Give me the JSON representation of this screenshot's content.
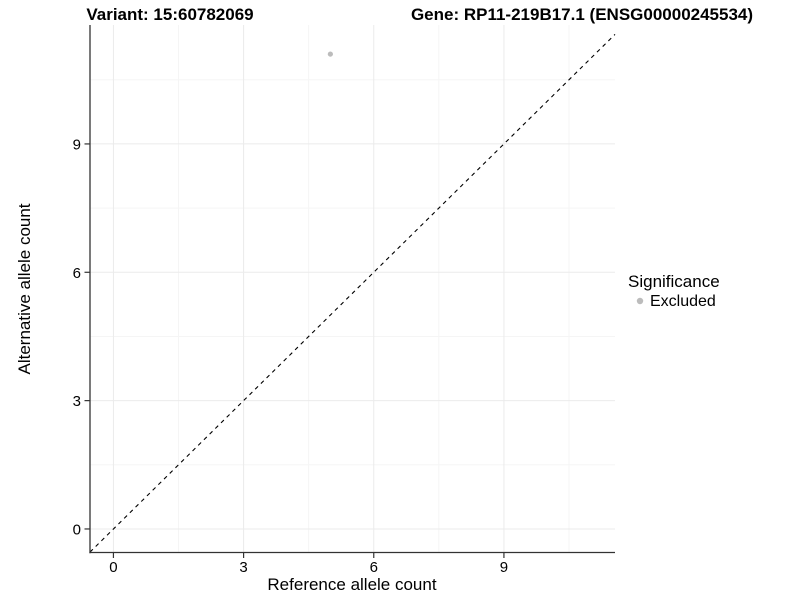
{
  "header": {
    "left_title": "Variant: 15:60782069",
    "right_title": "Gene: RP11-219B17.1 (ENSG00000245534)"
  },
  "chart_data": {
    "type": "scatter",
    "xlabel": "Reference allele count",
    "ylabel": "Alternative allele count",
    "x_ticks": [
      0,
      3,
      6,
      9
    ],
    "y_ticks": [
      0,
      3,
      6,
      9
    ],
    "x_minor_ticks": [
      1.5,
      4.5,
      7.5,
      10.5
    ],
    "y_minor_ticks": [
      1.5,
      4.5,
      7.5,
      10.5
    ],
    "xlim": [
      -0.54,
      11.56
    ],
    "ylim": [
      -0.55,
      11.78
    ],
    "grid": true,
    "points": [
      {
        "x": 5,
        "y": 11.1,
        "series": "Excluded"
      }
    ],
    "reference_line": {
      "slope": 1,
      "intercept": 0,
      "style": "dashed",
      "color": "#000000"
    },
    "legend": {
      "title": "Significance",
      "position": "right",
      "items": [
        {
          "label": "Excluded",
          "color": "#bcbcbc"
        }
      ]
    }
  },
  "colors": {
    "background": "#ffffff",
    "axis_line": "#333333",
    "tick": "#333333",
    "grid_major": "#ebebeb",
    "grid_minor": "#f5f5f5",
    "point": "#bcbcbc",
    "text": "#000000"
  }
}
